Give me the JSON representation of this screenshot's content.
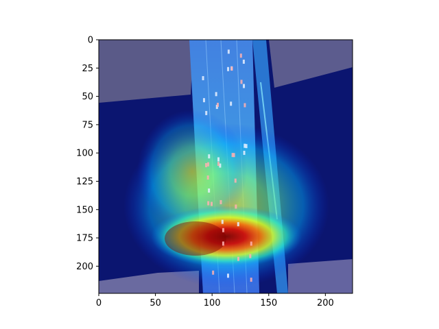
{
  "chart_data": {
    "type": "heatmap",
    "title": "",
    "xlabel": "",
    "ylabel": "",
    "xlim": [
      0,
      224
    ],
    "ylim": [
      224,
      0
    ],
    "x_ticks": [
      0,
      50,
      100,
      150,
      200
    ],
    "y_ticks": [
      0,
      25,
      50,
      75,
      100,
      125,
      150,
      175,
      200
    ],
    "x_tick_labels": [
      "0",
      "50",
      "100",
      "150",
      "200"
    ],
    "y_tick_labels": [
      "0",
      "25",
      "50",
      "75",
      "100",
      "125",
      "150",
      "175",
      "200"
    ],
    "colormap": "jet",
    "overlay_description": "aerial image of a highway bridge over water with attention heatmap overlay",
    "heat_regions": [
      {
        "cx": 110,
        "cy": 175,
        "rx": 55,
        "ry": 22,
        "level": 1.0
      },
      {
        "cx": 75,
        "cy": 150,
        "rx": 50,
        "ry": 55,
        "level": 0.6
      },
      {
        "cx": 130,
        "cy": 160,
        "rx": 60,
        "ry": 35,
        "level": 0.5
      }
    ],
    "colors": {
      "background_water": "#101a6b",
      "low": "#00007f",
      "high": "#7f0000"
    }
  }
}
